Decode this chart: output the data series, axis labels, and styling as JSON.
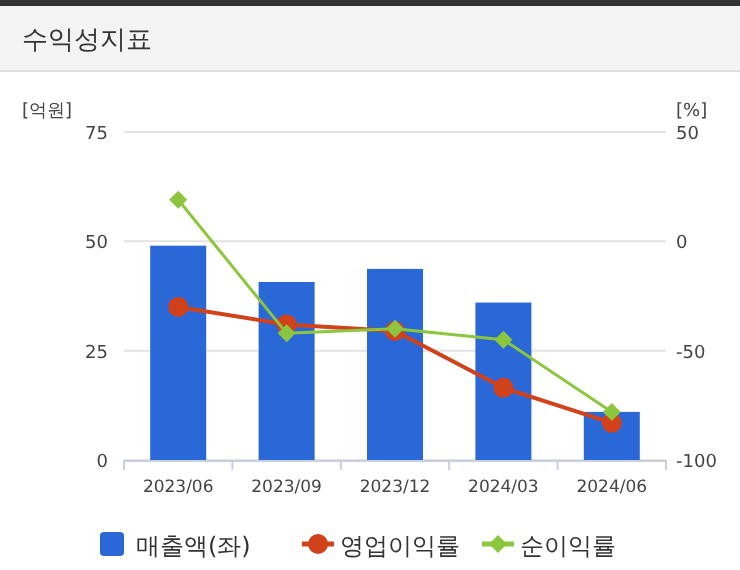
{
  "chart_data": {
    "type": "bar",
    "title": "수익성지표",
    "ylabel": "[억원]",
    "y2label": "[%]",
    "categories": [
      "2023/06",
      "2023/09",
      "2023/12",
      "2024/03",
      "2024/06"
    ],
    "series": [
      {
        "name": "매출액(좌)",
        "color": "#2a68d8",
        "values": [
          49,
          40.7,
          43.7,
          36,
          11
        ]
      },
      {
        "name": "영업이익률",
        "type": "line",
        "axis": "y2",
        "color": "#d2421a",
        "marker": "circle",
        "values": [
          -30,
          -38,
          -41,
          -67,
          -83
        ]
      },
      {
        "name": "순이익률",
        "type": "line",
        "axis": "y2",
        "color": "#8cc63e",
        "marker": "diamond",
        "values": [
          19,
          -42,
          -40,
          -45,
          -78
        ]
      }
    ],
    "ylim": [
      0,
      75
    ],
    "yticks": [
      0,
      25,
      50,
      75
    ],
    "y2lim": [
      -100,
      50
    ],
    "y2ticks": [
      -100,
      -50,
      0,
      50
    ],
    "grid": "y",
    "legend": "bottom"
  }
}
